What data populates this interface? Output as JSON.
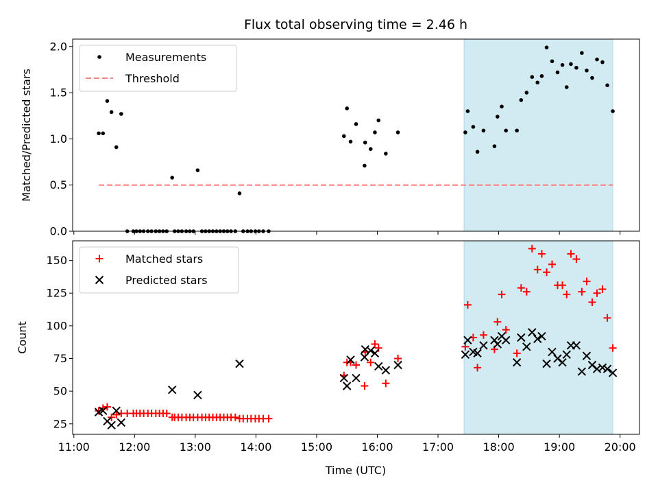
{
  "chart_data": {
    "type": "scatter",
    "title": "Flux total observing time = 2.46 h",
    "xlabel": "Time (UTC)",
    "x_ticks": [
      "11:00",
      "12:00",
      "13:00",
      "14:00",
      "15:00",
      "16:00",
      "17:00",
      "18:00",
      "19:00",
      "20:00"
    ],
    "xlim_hours": [
      10.98,
      20.32
    ],
    "shaded_interval_hours": [
      17.43,
      19.88
    ],
    "shade_color": "#add8e6",
    "panels": [
      {
        "ylabel": "Matched/Predicted stars",
        "ylim": [
          0,
          2.08
        ],
        "y_ticks": [
          0.0,
          0.5,
          1.0,
          1.5,
          2.0
        ],
        "legend": [
          "Measurements",
          "Threshold"
        ],
        "legend_position": "upper-left",
        "series": [
          {
            "name": "Measurements",
            "marker": "dot",
            "color": "#000000",
            "points": [
              [
                11.41,
                1.06
              ],
              [
                11.48,
                1.06
              ],
              [
                11.55,
                1.41
              ],
              [
                11.62,
                1.29
              ],
              [
                11.7,
                0.91
              ],
              [
                11.78,
                1.27
              ],
              [
                11.88,
                0
              ],
              [
                11.98,
                0
              ],
              [
                12.03,
                0
              ],
              [
                12.09,
                0
              ],
              [
                12.15,
                0
              ],
              [
                12.22,
                0
              ],
              [
                12.28,
                0
              ],
              [
                12.35,
                0
              ],
              [
                12.41,
                0
              ],
              [
                12.47,
                0
              ],
              [
                12.53,
                0
              ],
              [
                12.62,
                0.58
              ],
              [
                12.66,
                0
              ],
              [
                12.72,
                0
              ],
              [
                12.78,
                0
              ],
              [
                12.85,
                0
              ],
              [
                12.91,
                0
              ],
              [
                12.97,
                0
              ],
              [
                13.04,
                0.66
              ],
              [
                13.11,
                0
              ],
              [
                13.17,
                0
              ],
              [
                13.23,
                0
              ],
              [
                13.29,
                0
              ],
              [
                13.35,
                0
              ],
              [
                13.41,
                0
              ],
              [
                13.47,
                0
              ],
              [
                13.53,
                0
              ],
              [
                13.59,
                0
              ],
              [
                13.66,
                0
              ],
              [
                13.73,
                0.41
              ],
              [
                13.79,
                0
              ],
              [
                13.86,
                0
              ],
              [
                13.92,
                0
              ],
              [
                13.99,
                0
              ],
              [
                14.05,
                0
              ],
              [
                14.12,
                0
              ],
              [
                14.21,
                0
              ],
              [
                15.45,
                1.03
              ],
              [
                15.5,
                1.33
              ],
              [
                15.56,
                0.97
              ],
              [
                15.65,
                1.16
              ],
              [
                15.79,
                0.71
              ],
              [
                15.8,
                0.96
              ],
              [
                15.89,
                0.89
              ],
              [
                15.96,
                1.07
              ],
              [
                16.02,
                1.2
              ],
              [
                16.14,
                0.84
              ],
              [
                16.34,
                1.07
              ],
              [
                17.45,
                1.07
              ],
              [
                17.49,
                1.3
              ],
              [
                17.58,
                1.13
              ],
              [
                17.65,
                0.86
              ],
              [
                17.75,
                1.09
              ],
              [
                17.93,
                0.92
              ],
              [
                17.98,
                1.24
              ],
              [
                18.05,
                1.35
              ],
              [
                18.12,
                1.09
              ],
              [
                18.3,
                1.09
              ],
              [
                18.37,
                1.42
              ],
              [
                18.46,
                1.5
              ],
              [
                18.55,
                1.67
              ],
              [
                18.64,
                1.61
              ],
              [
                18.71,
                1.68
              ],
              [
                18.79,
                1.99
              ],
              [
                18.88,
                1.84
              ],
              [
                18.97,
                1.72
              ],
              [
                19.05,
                1.8
              ],
              [
                19.12,
                1.56
              ],
              [
                19.19,
                1.81
              ],
              [
                19.28,
                1.77
              ],
              [
                19.37,
                1.93
              ],
              [
                19.45,
                1.74
              ],
              [
                19.54,
                1.66
              ],
              [
                19.62,
                1.86
              ],
              [
                19.71,
                1.83
              ],
              [
                19.79,
                1.58
              ],
              [
                19.88,
                1.3
              ]
            ]
          },
          {
            "name": "Threshold",
            "style": "dashed-line",
            "color": "#ff7f7f",
            "value": 0.5,
            "x_range_hours": [
              11.41,
              19.88
            ]
          }
        ]
      },
      {
        "ylabel": "Count",
        "ylim": [
          17,
          165
        ],
        "y_ticks": [
          25,
          50,
          75,
          100,
          125,
          150
        ],
        "legend": [
          "Matched stars",
          "Predicted stars"
        ],
        "legend_position": "upper-left",
        "series": [
          {
            "name": "Matched stars",
            "marker": "plus",
            "color": "#ff0000",
            "points": [
              [
                11.41,
                35
              ],
              [
                11.48,
                37
              ],
              [
                11.55,
                38
              ],
              [
                11.62,
                30
              ],
              [
                11.7,
                32
              ],
              [
                11.78,
                33
              ],
              [
                11.88,
                33
              ],
              [
                11.98,
                33
              ],
              [
                12.03,
                33
              ],
              [
                12.09,
                33
              ],
              [
                12.15,
                33
              ],
              [
                12.22,
                33
              ],
              [
                12.28,
                33
              ],
              [
                12.35,
                33
              ],
              [
                12.41,
                33
              ],
              [
                12.47,
                33
              ],
              [
                12.53,
                33
              ],
              [
                12.62,
                30
              ],
              [
                12.66,
                30
              ],
              [
                12.72,
                30
              ],
              [
                12.78,
                30
              ],
              [
                12.85,
                30
              ],
              [
                12.91,
                30
              ],
              [
                12.97,
                30
              ],
              [
                13.04,
                30
              ],
              [
                13.11,
                30
              ],
              [
                13.17,
                30
              ],
              [
                13.23,
                30
              ],
              [
                13.29,
                30
              ],
              [
                13.35,
                30
              ],
              [
                13.41,
                30
              ],
              [
                13.47,
                30
              ],
              [
                13.53,
                30
              ],
              [
                13.59,
                30
              ],
              [
                13.66,
                30
              ],
              [
                13.73,
                29
              ],
              [
                13.79,
                29
              ],
              [
                13.86,
                29
              ],
              [
                13.92,
                29
              ],
              [
                13.99,
                29
              ],
              [
                14.05,
                29
              ],
              [
                14.12,
                29
              ],
              [
                14.21,
                29
              ],
              [
                15.45,
                62
              ],
              [
                15.5,
                72
              ],
              [
                15.56,
                72
              ],
              [
                15.65,
                70
              ],
              [
                15.79,
                54
              ],
              [
                15.8,
                80
              ],
              [
                15.89,
                72
              ],
              [
                15.96,
                86
              ],
              [
                16.02,
                83
              ],
              [
                16.14,
                56
              ],
              [
                16.34,
                75
              ],
              [
                17.45,
                84
              ],
              [
                17.49,
                116
              ],
              [
                17.58,
                91
              ],
              [
                17.65,
                68
              ],
              [
                17.75,
                93
              ],
              [
                17.93,
                82
              ],
              [
                17.98,
                103
              ],
              [
                18.05,
                124
              ],
              [
                18.12,
                97
              ],
              [
                18.3,
                79
              ],
              [
                18.37,
                129
              ],
              [
                18.46,
                126
              ],
              [
                18.55,
                159
              ],
              [
                18.64,
                143
              ],
              [
                18.71,
                155
              ],
              [
                18.79,
                141
              ],
              [
                18.88,
                147
              ],
              [
                18.97,
                131
              ],
              [
                19.05,
                131
              ],
              [
                19.12,
                124
              ],
              [
                19.19,
                155
              ],
              [
                19.28,
                151
              ],
              [
                19.37,
                126
              ],
              [
                19.45,
                134
              ],
              [
                19.54,
                118
              ],
              [
                19.62,
                125
              ],
              [
                19.71,
                128
              ],
              [
                19.79,
                106
              ],
              [
                19.88,
                83
              ]
            ]
          },
          {
            "name": "Predicted stars",
            "marker": "cross",
            "color": "#000000",
            "points": [
              [
                11.41,
                34
              ],
              [
                11.48,
                35
              ],
              [
                11.55,
                27
              ],
              [
                11.62,
                24
              ],
              [
                11.7,
                35
              ],
              [
                11.78,
                26
              ],
              [
                12.62,
                51
              ],
              [
                13.04,
                47
              ],
              [
                13.73,
                71
              ],
              [
                15.45,
                60
              ],
              [
                15.5,
                54
              ],
              [
                15.56,
                74
              ],
              [
                15.65,
                60
              ],
              [
                15.79,
                76
              ],
              [
                15.8,
                82
              ],
              [
                15.89,
                81
              ],
              [
                15.96,
                79
              ],
              [
                16.02,
                69
              ],
              [
                16.14,
                66
              ],
              [
                16.34,
                70
              ],
              [
                17.45,
                78
              ],
              [
                17.49,
                89
              ],
              [
                17.58,
                80
              ],
              [
                17.65,
                79
              ],
              [
                17.75,
                85
              ],
              [
                17.93,
                89
              ],
              [
                17.98,
                86
              ],
              [
                18.05,
                92
              ],
              [
                18.12,
                89
              ],
              [
                18.3,
                72
              ],
              [
                18.37,
                91
              ],
              [
                18.46,
                84
              ],
              [
                18.55,
                95
              ],
              [
                18.64,
                90
              ],
              [
                18.71,
                92
              ],
              [
                18.79,
                71
              ],
              [
                18.88,
                80
              ],
              [
                18.97,
                75
              ],
              [
                19.05,
                72
              ],
              [
                19.12,
                78
              ],
              [
                19.19,
                85
              ],
              [
                19.28,
                85
              ],
              [
                19.37,
                65
              ],
              [
                19.45,
                77
              ],
              [
                19.54,
                70
              ],
              [
                19.62,
                67
              ],
              [
                19.71,
                68
              ],
              [
                19.79,
                67
              ],
              [
                19.88,
                64
              ]
            ]
          }
        ]
      }
    ]
  }
}
